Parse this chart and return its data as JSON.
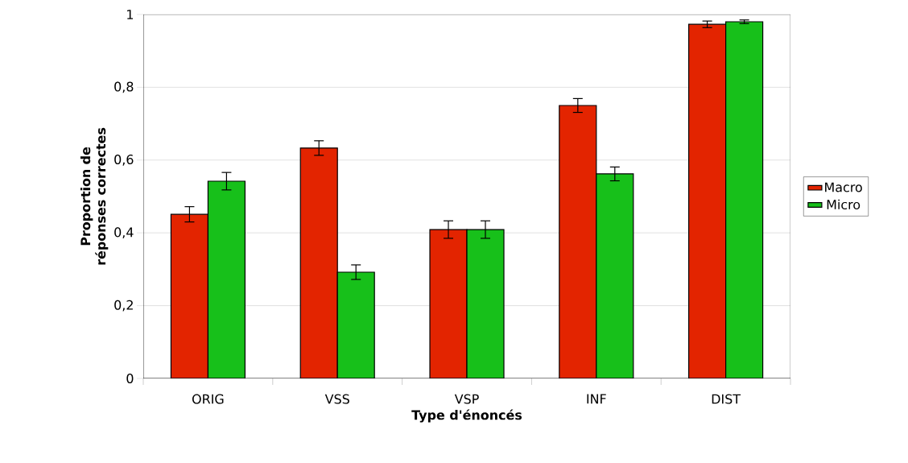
{
  "chart_data": {
    "type": "bar",
    "xlabel": "Type d'énoncés",
    "ylabel": "Proportion de réponses correctes",
    "categories": [
      "ORIG",
      "VSS",
      "VSP",
      "INF",
      "DIST"
    ],
    "series": [
      {
        "name": "Macro",
        "color": "#e32400",
        "values": [
          0.451,
          0.633,
          0.409,
          0.75,
          0.973
        ],
        "errors": [
          0.021,
          0.02,
          0.024,
          0.019,
          0.009
        ]
      },
      {
        "name": "Micro",
        "color": "#17c01a",
        "values": [
          0.542,
          0.292,
          0.409,
          0.562,
          0.98
        ],
        "errors": [
          0.024,
          0.02,
          0.024,
          0.019,
          0.005
        ]
      }
    ],
    "ylim": [
      0,
      1
    ],
    "yticks": [
      0,
      {
        "value": 0.2,
        "label": "0,2"
      },
      {
        "value": 0.4,
        "label": "0,4"
      },
      {
        "value": 0.6,
        "label": "0,6"
      },
      {
        "value": 0.8,
        "label": "0,8"
      },
      1
    ],
    "grid": "y",
    "legend": "right"
  }
}
